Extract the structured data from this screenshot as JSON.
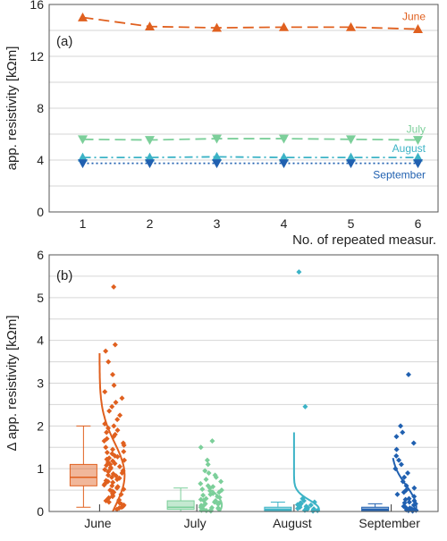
{
  "chart_data": [
    {
      "type": "line",
      "panel_label": "(a)",
      "xlabel": "No. of repeated measur.",
      "ylabel": "app. resistivity [kΩm]",
      "x": [
        1,
        2,
        3,
        4,
        5,
        6
      ],
      "xticks": [
        "1",
        "2",
        "3",
        "4",
        "5",
        "6"
      ],
      "xlim": [
        0.5,
        6.3
      ],
      "ylim": [
        0,
        16
      ],
      "yticks": [
        "0",
        "4",
        "8",
        "12",
        "16"
      ],
      "ytick_values": [
        0,
        4,
        8,
        12,
        16
      ],
      "ygrid_step": 2,
      "grid": true,
      "series": [
        {
          "name": "June",
          "values": [
            15.0,
            14.3,
            14.2,
            14.25,
            14.25,
            14.1
          ],
          "color": "#e0601f",
          "marker": "triangle-up",
          "linestyle": "dashed"
        },
        {
          "name": "July",
          "values": [
            5.6,
            5.55,
            5.65,
            5.65,
            5.6,
            5.55
          ],
          "color": "#7ccf9a",
          "marker": "triangle-down",
          "linestyle": "dashed"
        },
        {
          "name": "August",
          "values": [
            4.2,
            4.2,
            4.25,
            4.2,
            4.2,
            4.2
          ],
          "color": "#3cb3c6",
          "marker": "triangle-up",
          "linestyle": "dashdot"
        },
        {
          "name": "September",
          "values": [
            3.75,
            3.75,
            3.75,
            3.75,
            3.75,
            3.75
          ],
          "color": "#2060b0",
          "marker": "triangle-down",
          "linestyle": "dotted"
        }
      ]
    },
    {
      "type": "box",
      "panel_label": "(b)",
      "ylabel": "Δ app. resistivity [kΩm]",
      "categories": [
        "June",
        "July",
        "August",
        "September"
      ],
      "ylim": [
        0,
        6
      ],
      "yticks": [
        "0",
        "1",
        "2",
        "3",
        "4",
        "5",
        "6"
      ],
      "ytick_values": [
        0,
        1,
        2,
        3,
        4,
        5,
        6
      ],
      "grid": true,
      "groups": [
        {
          "name": "June",
          "color": "#e0601f",
          "box": {
            "whisker_low": 0.1,
            "q1": 0.6,
            "median": 0.8,
            "q3": 1.1,
            "whisker_high": 2.0
          },
          "outliers": [
            5.25,
            3.9,
            3.75
          ],
          "points": [
            5.25,
            3.9,
            3.75,
            3.5,
            3.2,
            2.95,
            2.8,
            2.65,
            2.55,
            2.45,
            2.35,
            2.25,
            2.15,
            2.05,
            2.0,
            1.95,
            1.9,
            1.85,
            1.8,
            1.75,
            1.7,
            1.65,
            1.6,
            1.55,
            1.5,
            1.45,
            1.4,
            1.38,
            1.35,
            1.3,
            1.28,
            1.25,
            1.22,
            1.2,
            1.18,
            1.15,
            1.12,
            1.1,
            1.08,
            1.05,
            1.03,
            1.0,
            0.98,
            0.95,
            0.93,
            0.9,
            0.88,
            0.85,
            0.83,
            0.8,
            0.78,
            0.75,
            0.72,
            0.7,
            0.68,
            0.65,
            0.62,
            0.6,
            0.58,
            0.55,
            0.52,
            0.5,
            0.47,
            0.45,
            0.42,
            0.4,
            0.37,
            0.35,
            0.32,
            0.3,
            0.27,
            0.25,
            0.22,
            0.2,
            0.17,
            0.15,
            0.12,
            0.1,
            0.08,
            0.05
          ],
          "density": {
            "peak": 0.85,
            "width": 0.75
          }
        },
        {
          "name": "July",
          "color": "#7ccf9a",
          "box": {
            "whisker_low": 0.0,
            "q1": 0.05,
            "median": 0.1,
            "q3": 0.25,
            "whisker_high": 0.55
          },
          "outliers": [
            0.95,
            0.9,
            0.85
          ],
          "points": [
            1.65,
            1.5,
            1.2,
            1.1,
            0.95,
            0.9,
            0.85,
            0.8,
            0.75,
            0.7,
            0.65,
            0.6,
            0.58,
            0.55,
            0.52,
            0.5,
            0.48,
            0.45,
            0.42,
            0.4,
            0.38,
            0.35,
            0.33,
            0.3,
            0.28,
            0.26,
            0.25,
            0.23,
            0.22,
            0.2,
            0.18,
            0.17,
            0.15,
            0.14,
            0.12,
            0.1,
            0.09,
            0.08,
            0.06,
            0.05,
            0.04,
            0.03,
            0.02,
            0.01
          ],
          "density": {
            "peak": 0.15,
            "width": 0.35
          }
        },
        {
          "name": "August",
          "color": "#3cb3c6",
          "box": {
            "whisker_low": 0.0,
            "q1": 0.02,
            "median": 0.05,
            "q3": 0.1,
            "whisker_high": 0.22
          },
          "outliers": [
            5.6,
            2.45
          ],
          "points": [
            5.6,
            2.45,
            0.3,
            0.25,
            0.22,
            0.2,
            0.18,
            0.16,
            0.15,
            0.13,
            0.12,
            0.1,
            0.09,
            0.08,
            0.07,
            0.06,
            0.05,
            0.04,
            0.03,
            0.02,
            0.01
          ],
          "density": {
            "peak": 0.05,
            "width": 0.22
          }
        },
        {
          "name": "September",
          "color": "#2060b0",
          "box": {
            "whisker_low": 0.0,
            "q1": 0.02,
            "median": 0.05,
            "q3": 0.1,
            "whisker_high": 0.18
          },
          "outliers": [
            3.2
          ],
          "points": [
            3.2,
            2.0,
            1.85,
            1.75,
            1.6,
            1.45,
            1.3,
            1.2,
            1.1,
            1.0,
            0.9,
            0.8,
            0.7,
            0.6,
            0.55,
            0.5,
            0.45,
            0.4,
            0.35,
            0.3,
            0.28,
            0.25,
            0.22,
            0.2,
            0.18,
            0.15,
            0.12,
            0.1,
            0.08,
            0.06,
            0.05,
            0.04,
            0.03,
            0.02,
            0.01
          ],
          "density": {
            "peak": 0.1,
            "width": 0.5
          }
        }
      ]
    }
  ]
}
